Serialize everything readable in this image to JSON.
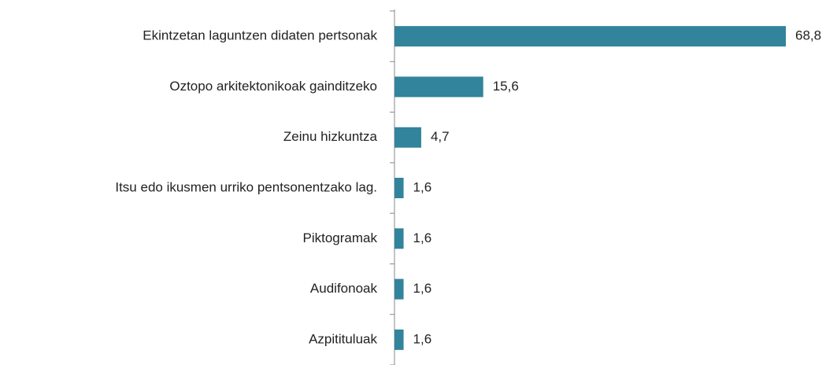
{
  "chart_data": {
    "type": "bar",
    "orientation": "horizontal",
    "categories": [
      "Ekintzetan laguntzen didaten pertsonak",
      "Oztopo arkitektonikoak gainditzeko",
      "Zeinu hizkuntza",
      "Itsu edo ikusmen urriko pentsonentzako lag.",
      "Piktogramak",
      "Audifonoak",
      "Azpitituluak"
    ],
    "values": [
      68.8,
      15.6,
      4.7,
      1.6,
      1.6,
      1.6,
      1.6
    ],
    "value_labels": [
      "68,8",
      "15,6",
      "4,7",
      "1,6",
      "1,6",
      "1,6",
      "1,6"
    ],
    "color": "#31849b"
  }
}
